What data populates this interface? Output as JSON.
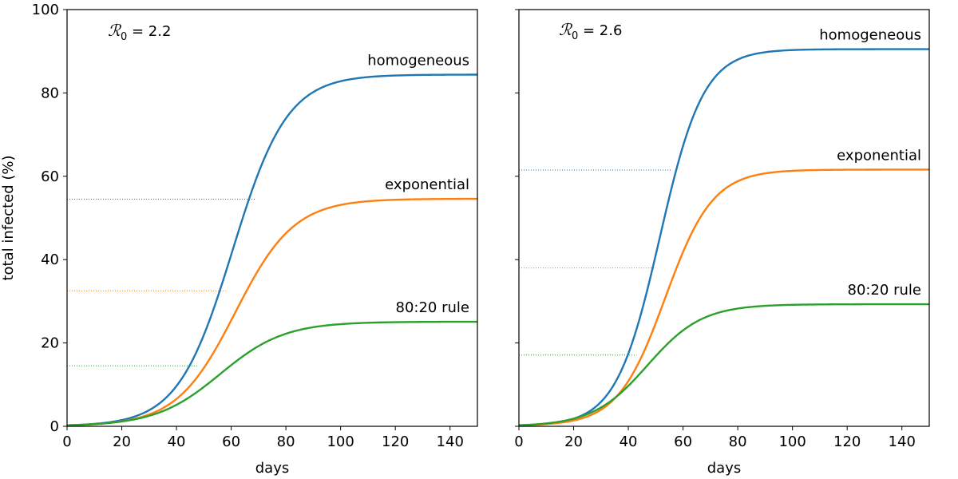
{
  "chart_data": [
    {
      "type": "line",
      "annotation": {
        "symbol": "ℛ",
        "subscript": "0",
        "text": " = 2.2"
      },
      "xlabel": "days",
      "ylabel": "total infected (%)",
      "xlim": [
        0,
        150
      ],
      "ylim": [
        0,
        100
      ],
      "xticks": [
        0,
        20,
        40,
        60,
        80,
        100,
        120,
        140
      ],
      "yticks": [
        0,
        20,
        40,
        60,
        80,
        100
      ],
      "show_yticklabels": true,
      "grid": false,
      "series": [
        {
          "name": "homogeneous",
          "color": "#1f77b4",
          "final": 84.4,
          "midpoint": 60.5,
          "rate": 0.1,
          "threshold": 54.5,
          "threshold_end": 69
        },
        {
          "name": "exponential",
          "color": "#ff7f0e",
          "final": 54.6,
          "midpoint": 61.5,
          "rate": 0.093,
          "threshold": 32.5,
          "threshold_end": 58
        },
        {
          "name": "80:20 rule",
          "color": "#2ca02c",
          "final": 25.1,
          "midpoint": 56,
          "rate": 0.085,
          "threshold": 14.5,
          "threshold_end": 48
        }
      ]
    },
    {
      "type": "line",
      "annotation": {
        "symbol": "ℛ",
        "subscript": "0",
        "text": " = 2.6"
      },
      "xlabel": "days",
      "ylabel": "",
      "xlim": [
        0,
        150
      ],
      "ylim": [
        0,
        100
      ],
      "xticks": [
        0,
        20,
        40,
        60,
        80,
        100,
        120,
        140
      ],
      "yticks": [
        0,
        20,
        40,
        60,
        80,
        100
      ],
      "show_yticklabels": false,
      "grid": false,
      "series": [
        {
          "name": "homogeneous",
          "color": "#1f77b4",
          "final": 90.5,
          "midpoint": 51.5,
          "rate": 0.125,
          "threshold": 61.5,
          "threshold_end": 56
        },
        {
          "name": "exponential",
          "color": "#ff7f0e",
          "final": 61.6,
          "midpoint": 53.5,
          "rate": 0.115,
          "threshold": 38,
          "threshold_end": 50
        },
        {
          "name": "80:20 rule",
          "color": "#2ca02c",
          "final": 29.3,
          "midpoint": 47,
          "rate": 0.1,
          "threshold": 17.1,
          "threshold_end": 43
        }
      ]
    }
  ]
}
